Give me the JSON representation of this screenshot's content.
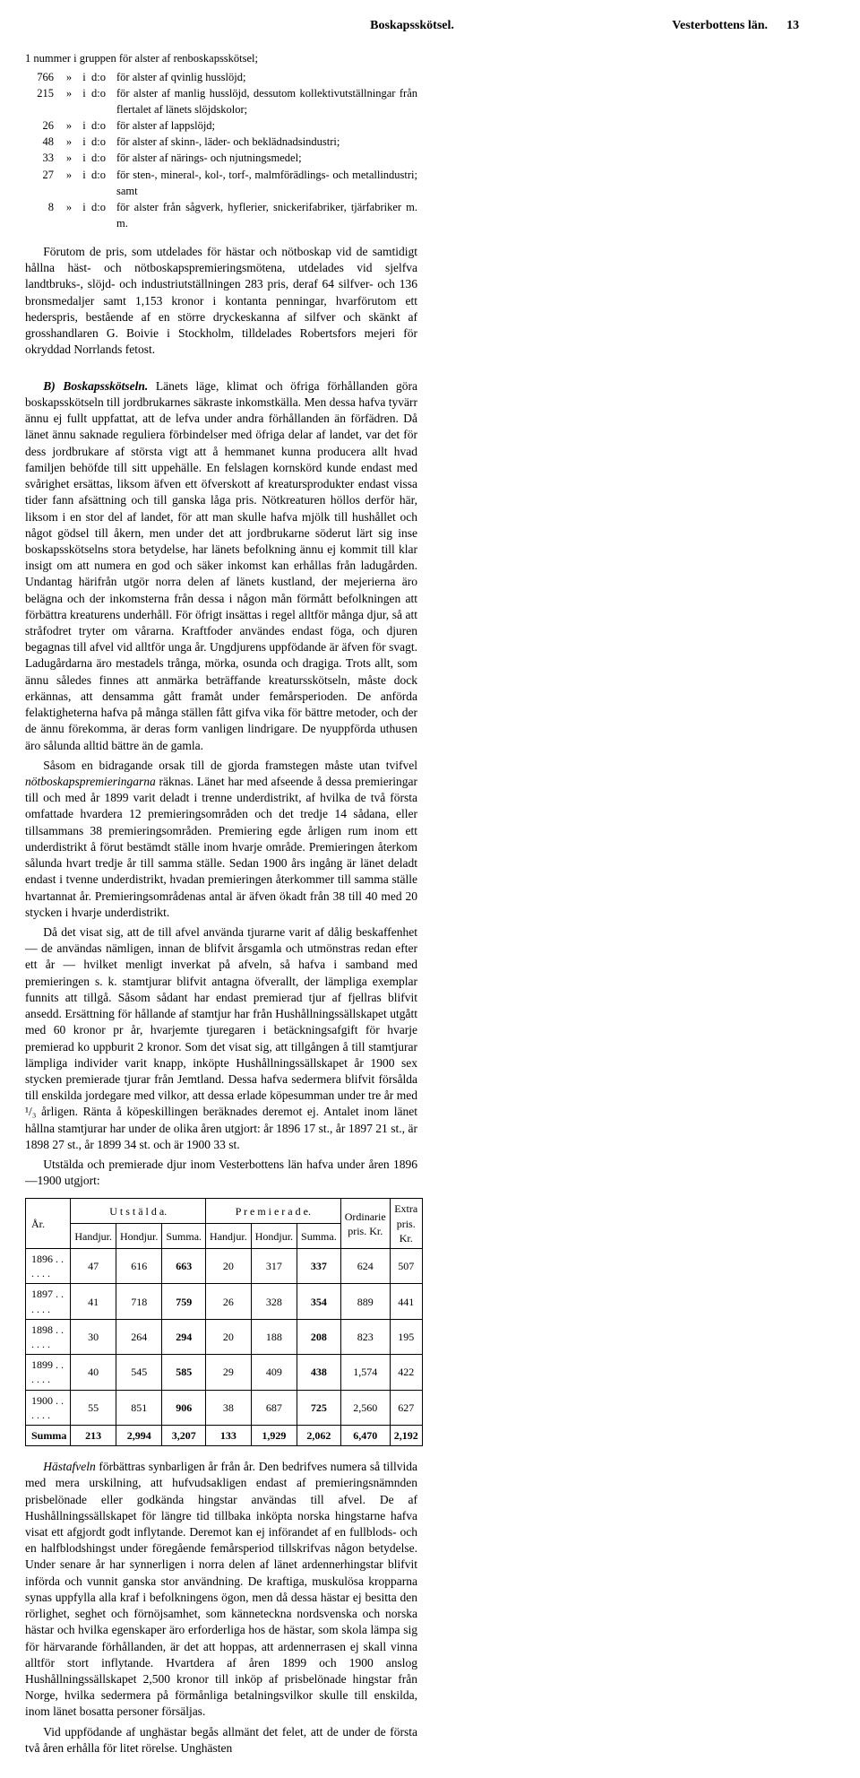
{
  "header": {
    "center": "Boskapsskötsel.",
    "right_region": "Vesterbottens län.",
    "page_number": "13"
  },
  "list": {
    "intro": "1 nummer i gruppen för alster af renboskapsskötsel;",
    "rows": [
      {
        "n": "766",
        "mark": "»",
        "i": "i",
        "do": "d:o",
        "text": "för alster af qvinlig husslöjd;"
      },
      {
        "n": "215",
        "mark": "»",
        "i": "i",
        "do": "d:o",
        "text": "för alster af manlig husslöjd, dessutom kollektivutställningar från flertalet af länets slöjdskolor;"
      },
      {
        "n": "26",
        "mark": "»",
        "i": "i",
        "do": "d:o",
        "text": "för alster af lappslöjd;"
      },
      {
        "n": "48",
        "mark": "»",
        "i": "i",
        "do": "d:o",
        "text": "för alster af skinn-, läder- och beklädnadsindustri;"
      },
      {
        "n": "33",
        "mark": "»",
        "i": "i",
        "do": "d:o",
        "text": "för alster af närings- och njutningsmedel;"
      },
      {
        "n": "27",
        "mark": "»",
        "i": "i",
        "do": "d:o",
        "text": "för sten-, mineral-, kol-, torf-, malmförädlings- och metallindustri; samt"
      },
      {
        "n": "8",
        "mark": "»",
        "i": "i",
        "do": "d:o",
        "text": "för alster från sågverk, hyflerier, snickerifabriker, tjärfabriker m. m."
      }
    ]
  },
  "paras": {
    "p1": "Förutom de pris, som utdelades för hästar och nötboskap vid de samtidigt hållna häst- och nötboskapspremieringsmötena, utdelades vid sjelfva landtbruks-, slöjd- och industriutställningen 283 pris, deraf 64 silfver- och 136 bronsmedaljer samt 1,153 kronor i kontanta penningar, hvarförutom ett hederspris, bestående af en större dryckeskanna af silfver och skänkt af grosshandlaren G. Boivie i Stockholm, tilldelades Robertsfors mejeri för okryddad Norrlands fetost.",
    "pB_lead": "B) Boskapsskötseln.",
    "pB": " Länets läge, klimat och öfriga förhållanden göra boskapsskötseln till jordbrukarnes säkraste inkomstkälla. Men dessa hafva tyvärr ännu ej fullt uppfattat, att de lefva under andra förhållanden än förfädren. Då länet ännu saknade reguliera förbindelser med öfriga delar af landet, var det för dess jordbrukare af största vigt att å hemmanet kunna producera allt hvad familjen behöfde till sitt uppehälle. En felslagen kornskörd kunde endast med svårighet ersättas, liksom äfven ett öfverskott af kreatursprodukter endast vissa tider fann afsättning och till ganska låga pris. Nötkreaturen höllos derför här, liksom i en stor del af landet, för att man skulle hafva mjölk till hushållet och något gödsel till åkern, men under det att jordbrukarne söderut lärt sig inse boskapsskötselns stora betydelse, har länets befolkning ännu ej kommit till klar insigt om att numera en god och säker inkomst kan erhållas från ladugården. Undantag härifrån utgör norra delen af länets kustland, der mejerierna äro belägna och der inkomsterna från dessa i någon mån förmått befolkningen att förbättra kreaturens underhåll. För öfrigt insättas i regel alltför många djur, så att stråfodret tryter om vårarna. Kraftfoder användes endast föga, och djuren begagnas till afvel vid alltför unga år. Ungdjurens uppfödande är äfven för svagt. Ladugårdarna äro mestadels trånga, mörka, osunda och dragiga. Trots allt, som ännu således finnes att anmärka beträffande kreatursskötseln, måste dock erkännas, att densamma gått framåt under femårsperioden. De anförda felaktigheterna hafva på många ställen fått gifva vika för bättre metoder, och der de ännu förekomma, är deras form vanligen lindrigare. De nyuppförda uthusen äro sålunda alltid bättre än de gamla.",
    "p2a": "Såsom en bidragande orsak till de gjorda framstegen måste utan tvifvel ",
    "p2_emph": "nötboskapspremieringarna",
    "p2b": " räknas. Länet har med afseende å dessa premieringar till och med år 1899 varit deladt i trenne underdistrikt, af hvilka de två första omfattade hvardera 12 premieringsområden och det tredje 14 sådana, eller tillsammans 38 premieringsområden. Premiering egde årligen rum inom ett underdistrikt å förut bestämdt ställe inom hvarje område. Premieringen återkom sålunda hvart tredje år till samma ställe. Sedan 1900 års ingång är länet deladt endast i tvenne underdistrikt, hvadan premieringen återkommer till samma ställe hvartannat år. Premieringsområdenas antal är äfven ökadt från 38 till 40 med 20 stycken i hvarje underdistrikt.",
    "p3": "Då det visat sig, att de till afvel använda tjurarne varit af dålig beskaffenhet — de användas nämligen, innan de blifvit årsgamla och utmönstras redan efter ett år — hvilket menligt inverkat på afveln, så hafva i samband med premieringen s. k. stamtjurar blifvit antagna öfverallt, der lämpliga exemplar funnits att tillgå. Såsom sådant har endast premierad tjur af fjellras blifvit ansedd. Ersättning för hållande af stamtjur har från Hushållningssällskapet utgått med 60 kronor pr år, hvarjemte tjuregaren i betäckningsafgift för hvarje premierad ko uppburit 2 kronor. Som det visat sig, att tillgången å till stamtjurar lämpliga individer varit knapp, inköpte Hushållningssällskapet år 1900 sex stycken premierade tjurar från Jemtland. Dessa hafva sedermera blifvit försålda till enskilda jordegare med vilkor, att dessa erlade köpesumman under tre år med ¹/₃ årligen. Ränta å köpeskillingen beräknades deremot ej. Antalet inom länet hållna stamtjurar har under de olika åren utgjort: år 1896 17 st., år 1897 21 st., är 1898 27 st., år 1899 34 st. och är 1900 33 st.",
    "p4": "Utstälda och premierade djur inom Vesterbottens län hafva under åren 1896—1900 utgjort:",
    "p5_lead": "Hästafveln",
    "p5": " förbättras synbarligen år från år. Den bedrifves numera så tillvida med mera urskilning, att hufvudsakligen endast af premieringsnämnden prisbelönade eller godkända hingstar användas till afvel. De af Hushållningssällskapet för längre tid tillbaka inköpta norska hingstarne hafva visat ett afgjordt godt inflytande. Deremot kan ej införandet af en fullblods- och en halfblodshingst under föregående femårsperiod tillskrifvas någon betydelse. Under senare år har synnerligen i norra delen af länet ardennerhingstar blifvit införda och vunnit ganska stor användning. De kraftiga, muskulösa kropparna synas uppfylla alla kraf i befolkningens ögon, men då dessa hästar ej besitta den rörlighet, seghet och förnöjsamhet, som känneteckna nordsvenska och norska hästar och hvilka egenskaper äro erforderliga hos de hästar, som skola lämpa sig för härvarande förhållanden, är det att hoppas, att ardennerrasen ej skall vinna alltför stort inflytande. Hvartdera af åren 1899 och 1900 anslog Hushållningssällskapet 2,500 kronor till inköp af prisbelönade hingstar från Norge, hvilka sedermera på förmånliga betalningsvilkor skulle till enskilda, inom länet bosatta personer försäljas.",
    "p6": "Vid uppfödande af unghästar begås allmänt det felet, att de under de första två åren erhålla för litet rörelse. Unghästen"
  },
  "table": {
    "col_year": "År.",
    "group_utst": "U t s t ä l d a.",
    "group_prem": "P r e m i e r a d e.",
    "col_ord": "Ordinarie pris. Kr.",
    "col_extra": "Extra pris. Kr.",
    "sub_han": "Handjur.",
    "sub_hon": "Hondjur.",
    "sub_sum": "Summa.",
    "rows": [
      {
        "y": "1896 . . . . . .",
        "uh": "47",
        "uo": "616",
        "us": "663",
        "ph": "20",
        "po": "317",
        "ps": "337",
        "ord": "624",
        "ex": "507"
      },
      {
        "y": "1897 . . . . . .",
        "uh": "41",
        "uo": "718",
        "us": "759",
        "ph": "26",
        "po": "328",
        "ps": "354",
        "ord": "889",
        "ex": "441"
      },
      {
        "y": "1898 . . . . . .",
        "uh": "30",
        "uo": "264",
        "us": "294",
        "ph": "20",
        "po": "188",
        "ps": "208",
        "ord": "823",
        "ex": "195"
      },
      {
        "y": "1899 . . . . . .",
        "uh": "40",
        "uo": "545",
        "us": "585",
        "ph": "29",
        "po": "409",
        "ps": "438",
        "ord": "1,574",
        "ex": "422"
      },
      {
        "y": "1900 . . . . . .",
        "uh": "55",
        "uo": "851",
        "us": "906",
        "ph": "38",
        "po": "687",
        "ps": "725",
        "ord": "2,560",
        "ex": "627"
      }
    ],
    "sum_label": "Summa",
    "sum": {
      "uh": "213",
      "uo": "2,994",
      "us": "3,207",
      "ph": "133",
      "po": "1,929",
      "ps": "2,062",
      "ord": "6,470",
      "ex": "2,192"
    }
  }
}
